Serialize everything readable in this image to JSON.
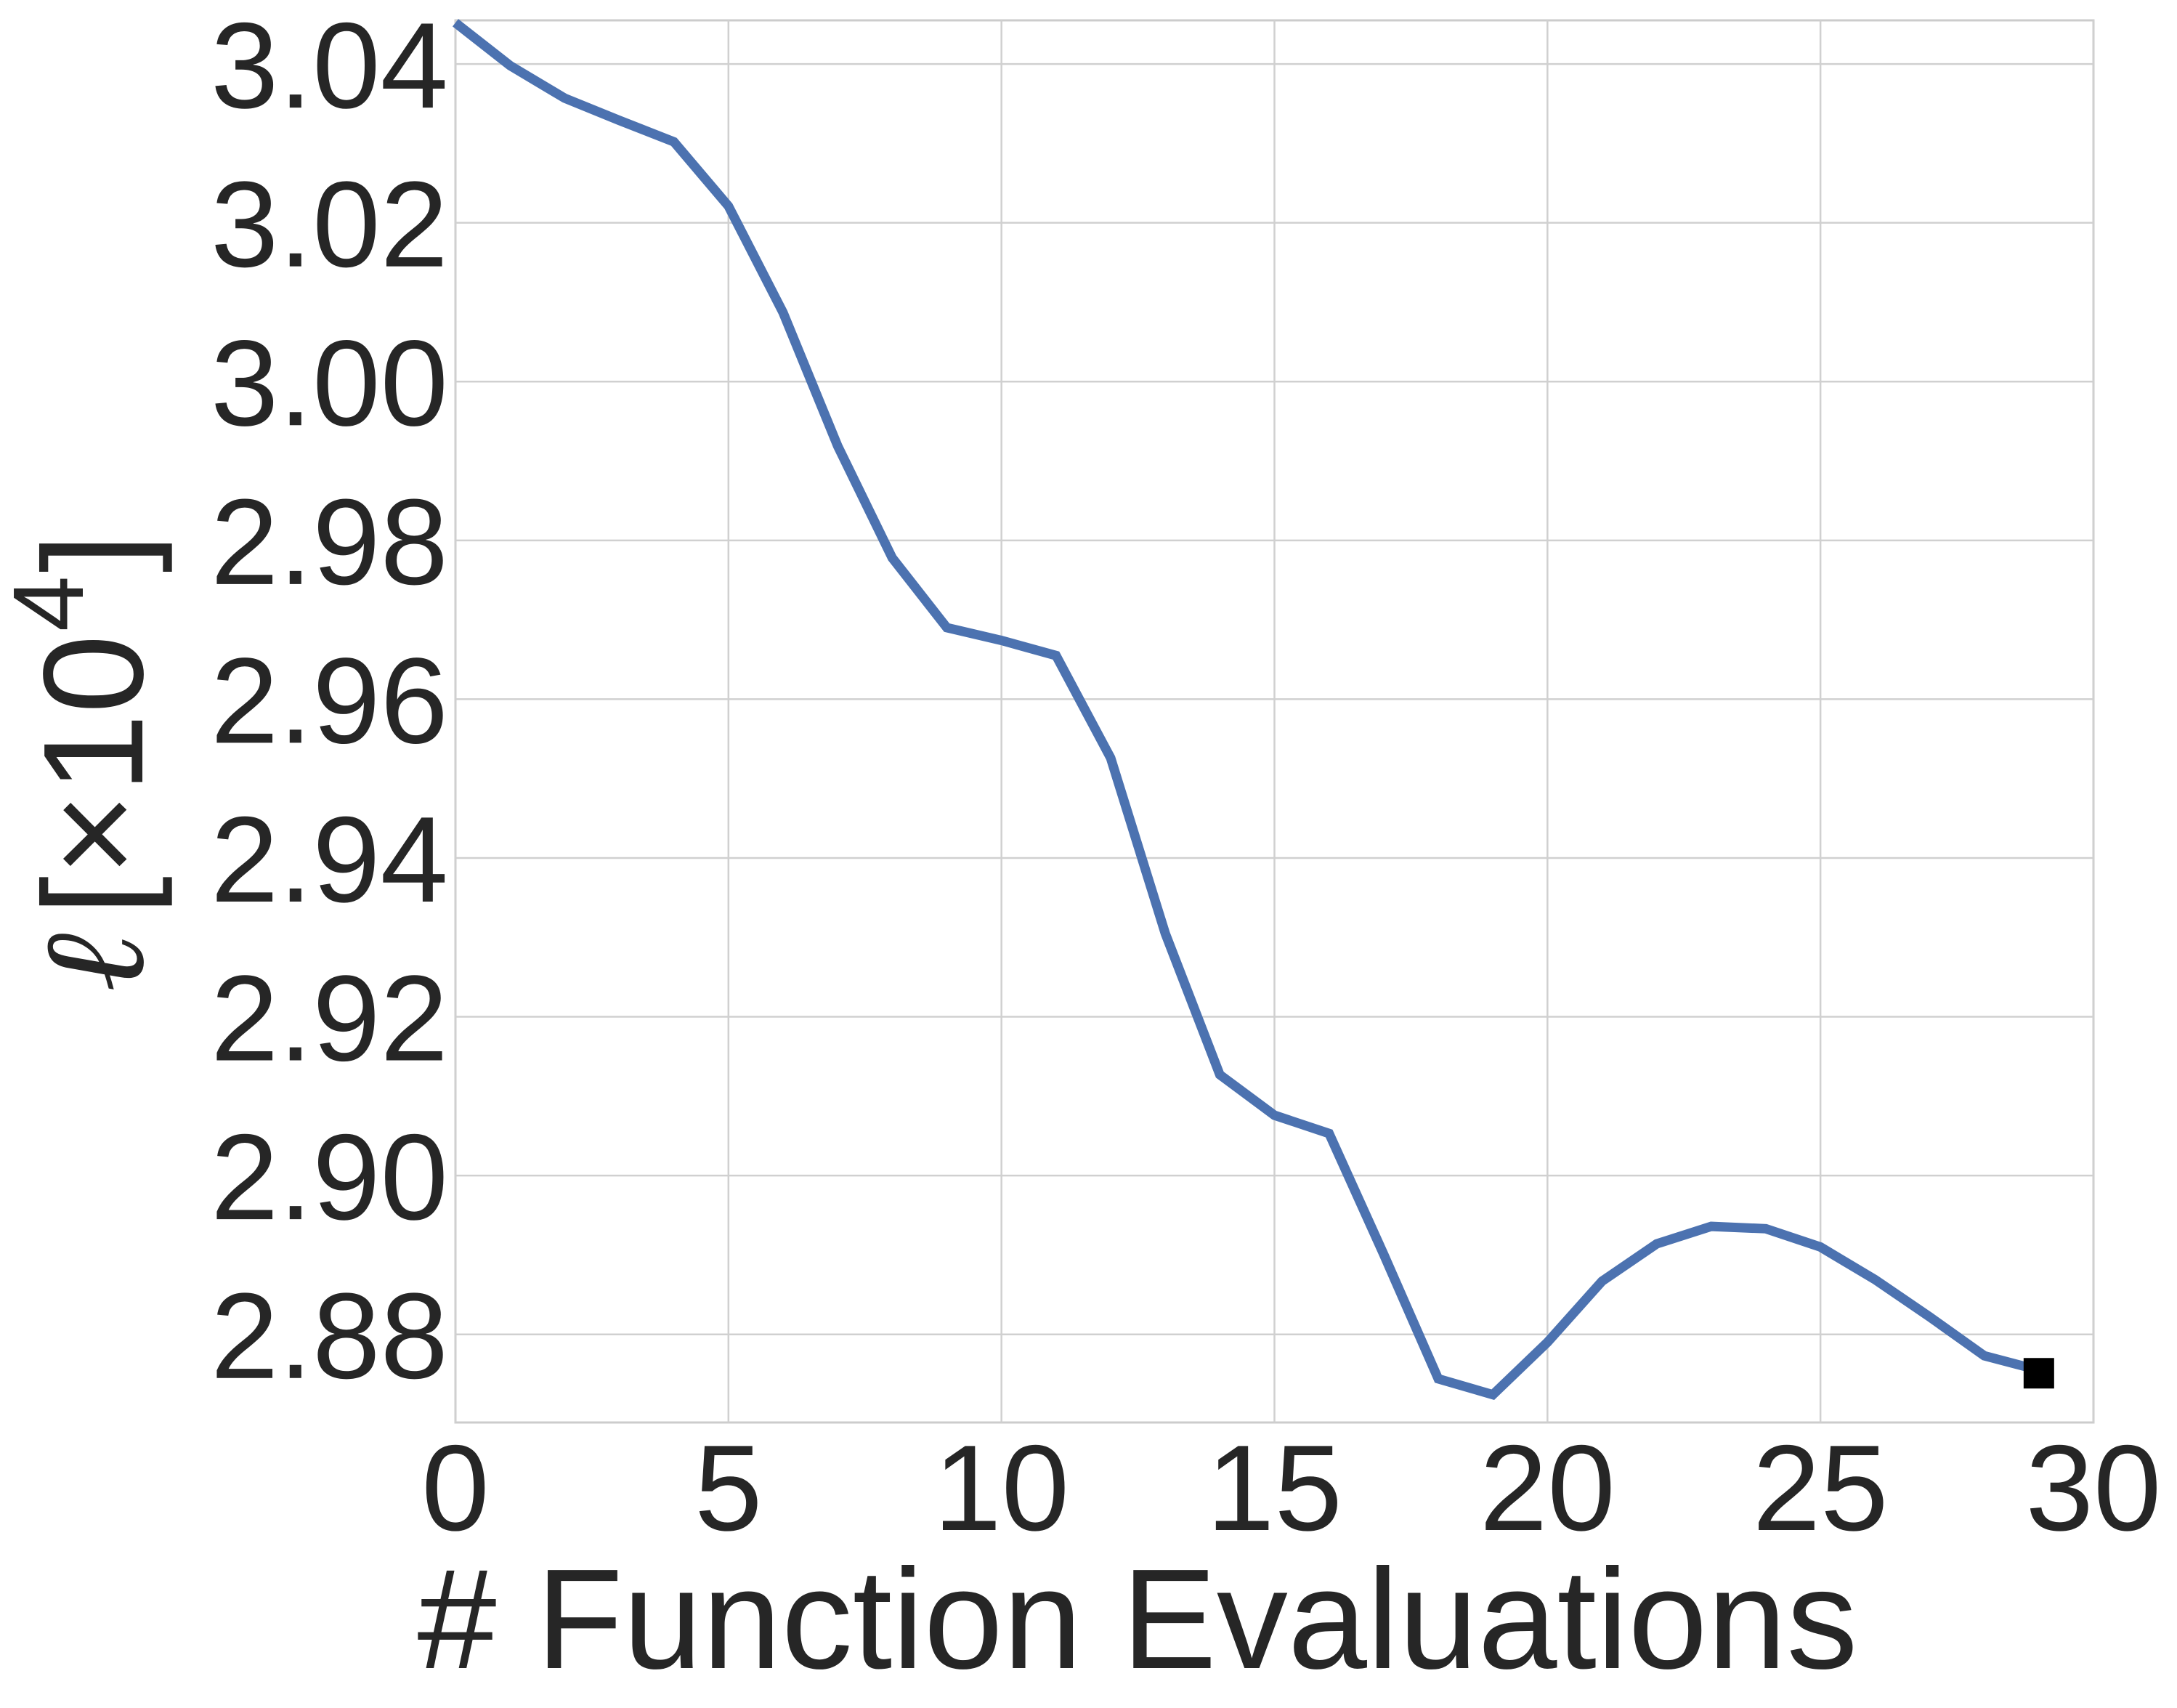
{
  "chart_data": {
    "type": "line",
    "xlabel": "# Function Evaluations",
    "ylabel": {
      "symbol": "ℓ",
      "prefix": "[×10",
      "exponent": "4",
      "suffix": "]"
    },
    "xlim": [
      0,
      30
    ],
    "ylim": [
      2.8689,
      3.0455
    ],
    "xticks": [
      0,
      5,
      10,
      15,
      20,
      25,
      30
    ],
    "xtick_labels": [
      "0",
      "5",
      "10",
      "15",
      "20",
      "25",
      "30"
    ],
    "yticks": [
      2.88,
      2.9,
      2.92,
      2.94,
      2.96,
      2.98,
      3.0,
      3.02,
      3.04
    ],
    "ytick_labels": [
      "2.88",
      "2.90",
      "2.92",
      "2.94",
      "2.96",
      "2.98",
      "3.00",
      "3.02",
      "3.04"
    ],
    "grid": true,
    "series": [
      {
        "color": "#4c72b0",
        "x": [
          0,
          1,
          2,
          3,
          4,
          5,
          6,
          7,
          8,
          9,
          10,
          11,
          12,
          13,
          14,
          15,
          16,
          17,
          18,
          19,
          20,
          21,
          22,
          23,
          24,
          25,
          26,
          27,
          28,
          29
        ],
        "y": [
          3.0452,
          3.0398,
          3.0357,
          3.0329,
          3.0302,
          3.0221,
          3.0087,
          2.9919,
          2.9778,
          2.969,
          2.9674,
          2.9655,
          2.9526,
          2.9305,
          2.9127,
          2.9076,
          2.9053,
          2.8901,
          2.8744,
          2.8724,
          2.879,
          2.8867,
          2.8914,
          2.8936,
          2.8933,
          2.891,
          2.8869,
          2.8822,
          2.8773,
          2.8755
        ]
      }
    ],
    "end_marker": {
      "x": 29,
      "y": 2.8751,
      "shape": "square",
      "color": "#000000"
    }
  }
}
